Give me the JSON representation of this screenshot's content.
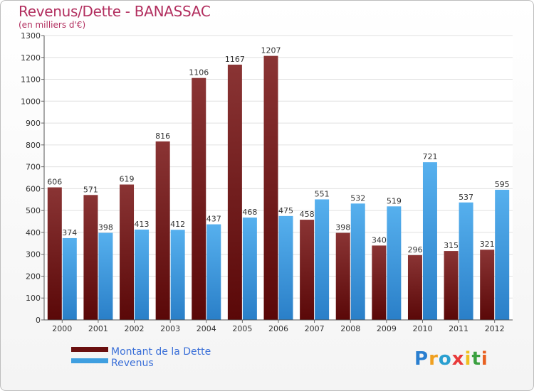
{
  "title": "Revenus/Dette - BANASSAC",
  "subtitle": "(en milliers d'€)",
  "logo": {
    "text": "Proxiti",
    "letters": [
      {
        "ch": "P",
        "color": "#2a7fd0"
      },
      {
        "ch": "r",
        "color": "#f0a020"
      },
      {
        "ch": "o",
        "color": "#2a9fd0"
      },
      {
        "ch": "x",
        "color": "#e83a3a"
      },
      {
        "ch": "i",
        "color": "#f0c020"
      },
      {
        "ch": "t",
        "color": "#3aa040"
      },
      {
        "ch": "i",
        "color": "#e86020"
      }
    ]
  },
  "colors": {
    "dette": "#7a1f1f",
    "revenus": "#3f9fe0",
    "text": "#b22f5f",
    "legend_text": "#3a6fd8"
  },
  "chart_data": {
    "type": "bar",
    "categories": [
      "2000",
      "2001",
      "2002",
      "2003",
      "2004",
      "2005",
      "2006",
      "2007",
      "2008",
      "2009",
      "2010",
      "2011",
      "2012"
    ],
    "series": [
      {
        "name": "Montant de la Dette",
        "values": [
          606,
          571,
          619,
          816,
          1106,
          1167,
          1207,
          458,
          398,
          340,
          296,
          315,
          321
        ]
      },
      {
        "name": "Revenus",
        "values": [
          374,
          398,
          413,
          412,
          437,
          468,
          475,
          551,
          532,
          519,
          721,
          537,
          595
        ]
      }
    ],
    "ylim": [
      0,
      1300
    ],
    "yticks": [
      0,
      100,
      200,
      300,
      400,
      500,
      600,
      700,
      800,
      900,
      1000,
      1100,
      1200,
      1300
    ],
    "grid": true,
    "legend_position": "bottom-left"
  }
}
